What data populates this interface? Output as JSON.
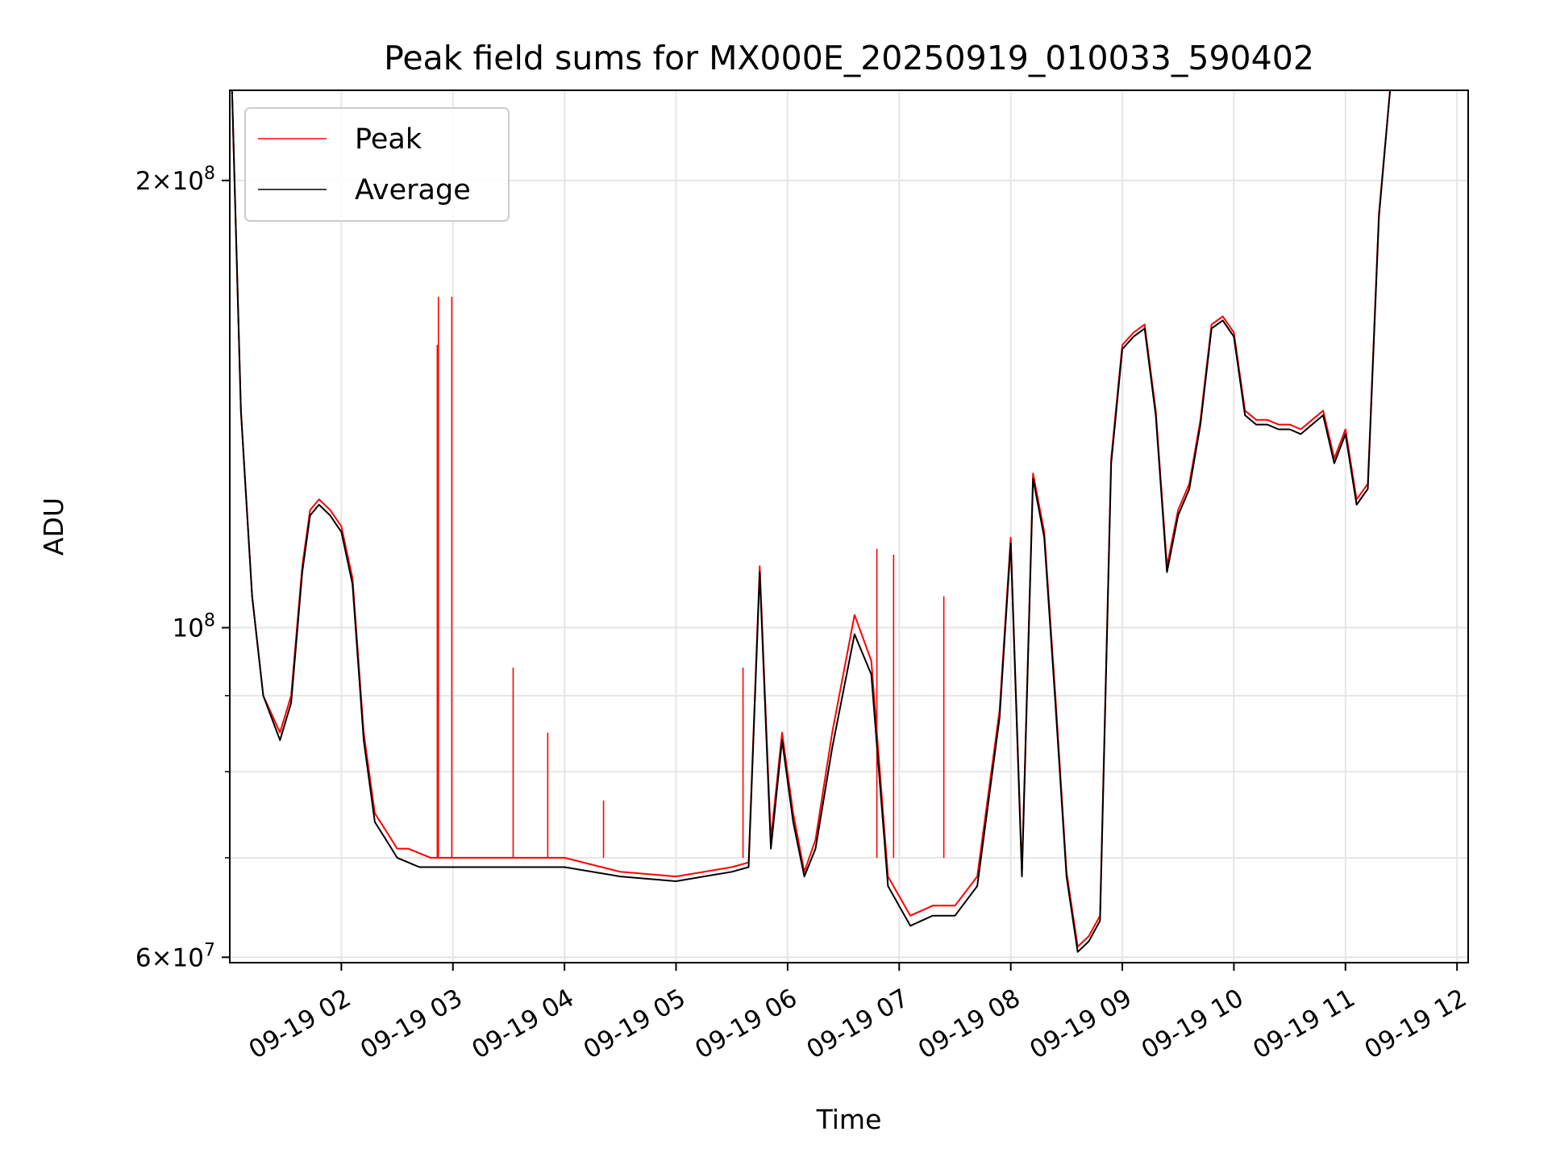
{
  "chart_data": {
    "type": "line",
    "title": "Peak field sums for MX000E_20250919_010033_590402",
    "xlabel": "Time",
    "ylabel": "ADU",
    "yscale": "log",
    "ylim": [
      59500000,
      230000000
    ],
    "xlim_hours": [
      1.0,
      12.1
    ],
    "grid": true,
    "legend_position": "upper-left",
    "x_ticks": [
      {
        "hour": 2,
        "label": "09-19 02"
      },
      {
        "hour": 3,
        "label": "09-19 03"
      },
      {
        "hour": 4,
        "label": "09-19 04"
      },
      {
        "hour": 5,
        "label": "09-19 05"
      },
      {
        "hour": 6,
        "label": "09-19 06"
      },
      {
        "hour": 7,
        "label": "09-19 07"
      },
      {
        "hour": 8,
        "label": "09-19 08"
      },
      {
        "hour": 9,
        "label": "09-19 09"
      },
      {
        "hour": 10,
        "label": "09-19 10"
      },
      {
        "hour": 11,
        "label": "09-19 11"
      },
      {
        "hour": 12,
        "label": "09-19 12"
      }
    ],
    "y_ticks": [
      {
        "value": 200000000,
        "mantissa": "2",
        "exponent": "8"
      },
      {
        "value": 100000000,
        "mantissa": "",
        "exponent": "8"
      },
      {
        "value": 60000000,
        "mantissa": "6",
        "exponent": "7"
      }
    ],
    "y_minor_grid": [
      70000000,
      80000000,
      90000000
    ],
    "series": [
      {
        "name": "Peak",
        "color": "#ff0000",
        "x_hours": [
          1.02,
          1.1,
          1.2,
          1.3,
          1.45,
          1.55,
          1.65,
          1.72,
          1.8,
          1.9,
          2.0,
          2.1,
          2.2,
          2.3,
          2.4,
          2.5,
          2.6,
          2.7,
          2.8,
          2.9,
          3.0,
          3.5,
          4.0,
          4.5,
          5.0,
          5.5,
          5.65,
          5.75,
          5.85,
          5.95,
          6.05,
          6.15,
          6.25,
          6.4,
          6.6,
          6.75,
          6.9,
          7.1,
          7.3,
          7.5,
          7.7,
          7.9,
          8.0,
          8.1,
          8.2,
          8.3,
          8.4,
          8.5,
          8.6,
          8.7,
          8.8,
          8.9,
          9.0,
          9.1,
          9.2,
          9.3,
          9.4,
          9.5,
          9.6,
          9.7,
          9.8,
          9.9,
          10.0,
          10.1,
          10.2,
          10.3,
          10.4,
          10.5,
          10.6,
          10.7,
          10.8,
          10.9,
          11.0,
          11.1,
          11.2,
          11.3,
          11.4,
          11.5,
          11.6,
          11.7,
          11.8,
          11.9,
          12.0
        ],
        "values": [
          230000000,
          140000000,
          105000000,
          90000000,
          85000000,
          90000000,
          110000000,
          120000000,
          122000000,
          120000000,
          117000000,
          108000000,
          85000000,
          75000000,
          73000000,
          71000000,
          71000000,
          70500000,
          70000000,
          70000000,
          70000000,
          70000000,
          70000000,
          68500000,
          68000000,
          69000000,
          69500000,
          110000000,
          72000000,
          85000000,
          75000000,
          68500000,
          72000000,
          85000000,
          102000000,
          95000000,
          68000000,
          64000000,
          65000000,
          65000000,
          68000000,
          88000000,
          115000000,
          68500000,
          127000000,
          116000000,
          90000000,
          68500000,
          61000000,
          62000000,
          64000000,
          130000000,
          155000000,
          158000000,
          160000000,
          140000000,
          110000000,
          120000000,
          125000000,
          138000000,
          160000000,
          162000000,
          158000000,
          140000000,
          138000000,
          138000000,
          137000000,
          137000000,
          136000000,
          138000000,
          140000000,
          130000000,
          136000000,
          122000000,
          125000000,
          190000000,
          230000000,
          230000000,
          230000000,
          230000000,
          230000000,
          230000000,
          230000000
        ],
        "spikes": [
          {
            "hour": 2.86,
            "value": 155000000
          },
          {
            "hour": 2.87,
            "value": 167000000
          },
          {
            "hour": 2.99,
            "value": 167000000
          },
          {
            "hour": 3.54,
            "value": 94000000
          },
          {
            "hour": 3.85,
            "value": 85000000
          },
          {
            "hour": 4.35,
            "value": 76500000
          },
          {
            "hour": 5.6,
            "value": 94000000
          },
          {
            "hour": 6.8,
            "value": 113000000
          },
          {
            "hour": 6.95,
            "value": 112000000
          },
          {
            "hour": 7.4,
            "value": 105000000
          }
        ]
      },
      {
        "name": "Average",
        "color": "#000000",
        "x_hours": [
          1.02,
          1.1,
          1.2,
          1.3,
          1.45,
          1.55,
          1.65,
          1.72,
          1.8,
          1.9,
          2.0,
          2.1,
          2.2,
          2.3,
          2.4,
          2.5,
          2.6,
          2.7,
          2.8,
          2.9,
          3.0,
          3.5,
          4.0,
          4.5,
          5.0,
          5.5,
          5.65,
          5.75,
          5.85,
          5.95,
          6.05,
          6.15,
          6.25,
          6.4,
          6.6,
          6.75,
          6.9,
          7.1,
          7.3,
          7.5,
          7.7,
          7.9,
          8.0,
          8.1,
          8.2,
          8.3,
          8.4,
          8.5,
          8.6,
          8.7,
          8.8,
          8.9,
          9.0,
          9.1,
          9.2,
          9.3,
          9.4,
          9.5,
          9.6,
          9.7,
          9.8,
          9.9,
          10.0,
          10.1,
          10.2,
          10.3,
          10.4,
          10.5,
          10.6,
          10.7,
          10.8,
          10.9,
          11.0,
          11.1,
          11.2,
          11.3,
          11.4,
          11.5,
          11.6,
          11.7,
          11.8,
          11.9,
          12.0
        ],
        "values": [
          230000000,
          140000000,
          105000000,
          90000000,
          84000000,
          89000000,
          109000000,
          119000000,
          121000000,
          119000000,
          116000000,
          107000000,
          84000000,
          74000000,
          72000000,
          70000000,
          69500000,
          69000000,
          69000000,
          69000000,
          69000000,
          69000000,
          69000000,
          68000000,
          67500000,
          68500000,
          69000000,
          109000000,
          71000000,
          84000000,
          74000000,
          68000000,
          71000000,
          83000000,
          99000000,
          93000000,
          67000000,
          63000000,
          64000000,
          64000000,
          67000000,
          87000000,
          114000000,
          68000000,
          126000000,
          115000000,
          89000000,
          68000000,
          60500000,
          61500000,
          63500000,
          129000000,
          154000000,
          157000000,
          159000000,
          139000000,
          109000000,
          119000000,
          124000000,
          137000000,
          159000000,
          161000000,
          157000000,
          139000000,
          137000000,
          137000000,
          136000000,
          136000000,
          135000000,
          137000000,
          139000000,
          129000000,
          135000000,
          121000000,
          124000000,
          189000000,
          230000000,
          230000000,
          230000000,
          230000000,
          230000000,
          230000000,
          230000000
        ]
      }
    ]
  }
}
